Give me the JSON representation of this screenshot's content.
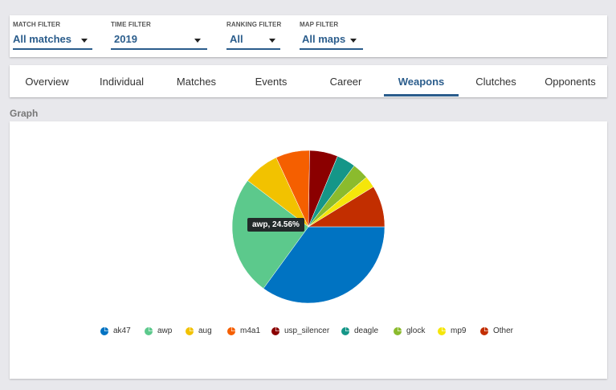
{
  "filters": [
    {
      "label": "MATCH FILTER",
      "value": "All matches"
    },
    {
      "label": "TIME FILTER",
      "value": "2019"
    },
    {
      "label": "RANKING FILTER",
      "value": "All"
    },
    {
      "label": "MAP FILTER",
      "value": "All maps"
    }
  ],
  "tabs": [
    {
      "label": "Overview",
      "active": false
    },
    {
      "label": "Individual",
      "active": false
    },
    {
      "label": "Matches",
      "active": false
    },
    {
      "label": "Events",
      "active": false
    },
    {
      "label": "Career",
      "active": false
    },
    {
      "label": "Weapons",
      "active": true
    },
    {
      "label": "Clutches",
      "active": false
    },
    {
      "label": "Opponents",
      "active": false
    }
  ],
  "section_title": "Graph",
  "accent_color": "#2b5d8c",
  "tooltip": "awp, 24.56%",
  "chart_data": {
    "type": "pie",
    "title": "",
    "slices": [
      {
        "label": "ak47",
        "value": 34.0,
        "color": "#0073c2"
      },
      {
        "label": "awp",
        "value": 24.56,
        "color": "#5cc98c"
      },
      {
        "label": "aug",
        "value": 7.5,
        "color": "#f2c200"
      },
      {
        "label": "m4a1",
        "value": 7.0,
        "color": "#f55f00"
      },
      {
        "label": "usp_silencer",
        "value": 5.8,
        "color": "#8b0000"
      },
      {
        "label": "deagle",
        "value": 3.9,
        "color": "#159688"
      },
      {
        "label": "glock",
        "value": 3.4,
        "color": "#8bbb2d"
      },
      {
        "label": "mp9",
        "value": 2.4,
        "color": "#f5e60a"
      },
      {
        "label": "Other",
        "value": 8.5,
        "color": "#c22e00"
      }
    ],
    "start_angle_deg": 0,
    "direction": "clockwise",
    "legend_position": "bottom"
  }
}
